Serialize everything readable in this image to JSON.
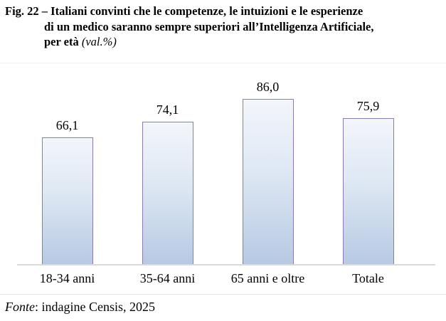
{
  "figure": {
    "title_line1": "Fig. 22 – Italiani convinti che le competenze, le intuizioni e le esperienze",
    "title_line2": "di un medico saranno sempre superiori all’Intelligenza Artificiale,",
    "title_line3_bold": "per età",
    "title_line3_italic": "(val.%)"
  },
  "chart_data": {
    "type": "bar",
    "title": "Italiani convinti che le competenze, le intuizioni e le esperienze di un medico saranno sempre superiori all’Intelligenza Artificiale, per età (val.%)",
    "categories": [
      "18-34 anni",
      "35-64 anni",
      "65 anni e oltre",
      "Totale"
    ],
    "values": [
      66.1,
      74.1,
      86.0,
      75.9
    ],
    "value_labels": [
      "66,1",
      "74,1",
      "86,0",
      "75,9"
    ],
    "xlabel": "",
    "ylabel": "",
    "ylim": [
      0,
      104
    ],
    "grid": false,
    "legend": false,
    "data_labels": "above bars, comma decimal",
    "colors": {
      "bar_fill_top": "#f3f6fb",
      "bar_fill_mid": "#dde7f3",
      "bar_fill_bottom": "#b7c9e3",
      "bar_border": "#8a7cb3",
      "axis_line": "#d9d9d9"
    }
  },
  "footer": {
    "source_label": "Fonte",
    "source_text": ": indagine Censis, 2025"
  }
}
